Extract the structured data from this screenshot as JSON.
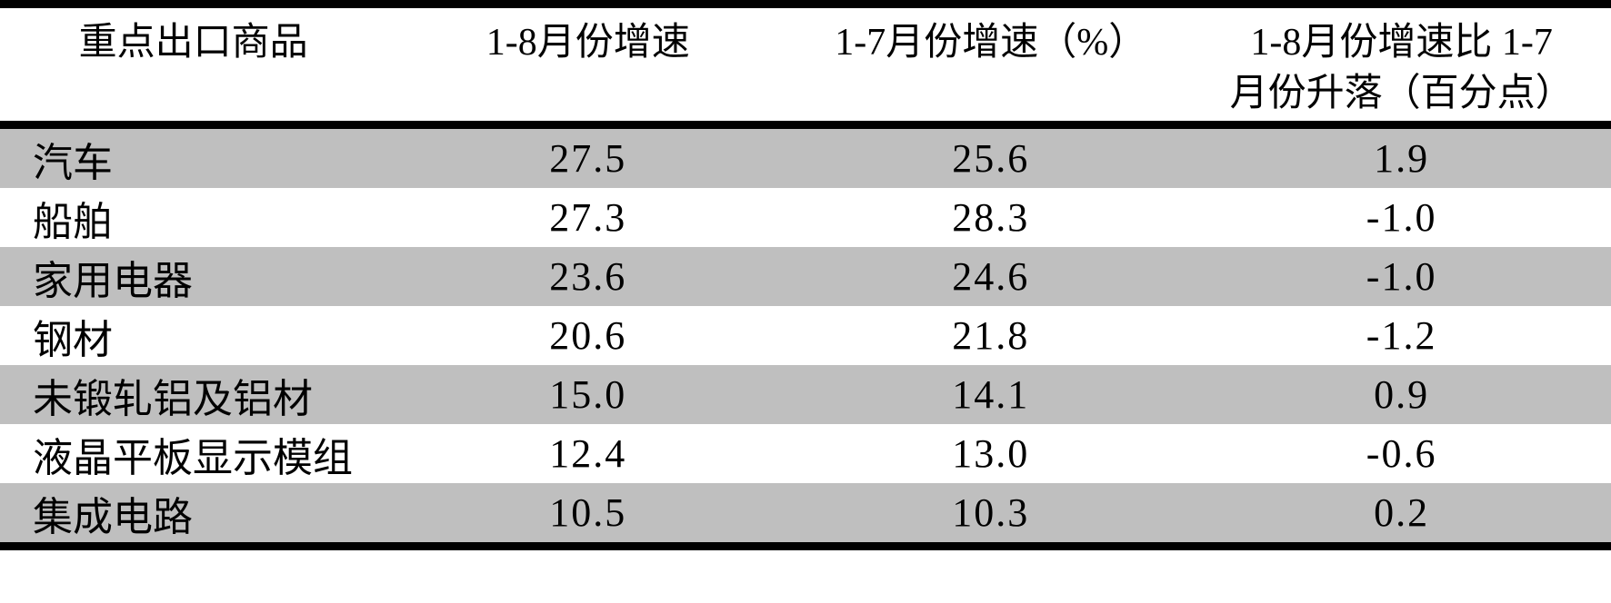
{
  "table": {
    "columns": [
      {
        "label": "重点出口商品"
      },
      {
        "label": "1-8月份增速"
      },
      {
        "label": "1-7月份增速（%）"
      },
      {
        "label_line1": "1-8月份增速比 1-7",
        "label_line2": "月份升落（百分点）"
      }
    ],
    "rows": [
      {
        "name": "汽车",
        "growth_1_8": "27.5",
        "growth_1_7": "25.6",
        "change": "1.9"
      },
      {
        "name": "船舶",
        "growth_1_8": "27.3",
        "growth_1_7": "28.3",
        "change": "-1.0"
      },
      {
        "name": "家用电器",
        "growth_1_8": "23.6",
        "growth_1_7": "24.6",
        "change": "-1.0"
      },
      {
        "name": "钢材",
        "growth_1_8": "20.6",
        "growth_1_7": "21.8",
        "change": "-1.2"
      },
      {
        "name": "未锻轧铝及铝材",
        "growth_1_8": "15.0",
        "growth_1_7": "14.1",
        "change": "0.9"
      },
      {
        "name": "液晶平板显示模组",
        "growth_1_8": "12.4",
        "growth_1_7": "13.0",
        "change": "-0.6"
      },
      {
        "name": "集成电路",
        "growth_1_8": "10.5",
        "growth_1_7": "10.3",
        "change": "0.2"
      }
    ],
    "colors": {
      "row_shade": "#bfbfbf",
      "rule": "#000000",
      "background": "#ffffff"
    }
  }
}
